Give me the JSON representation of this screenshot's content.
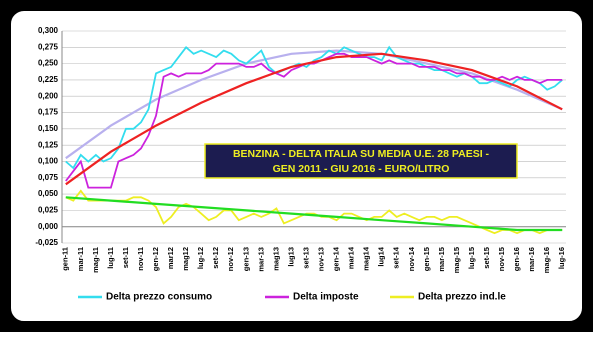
{
  "chart_data": {
    "type": "line",
    "title": [
      "BENZINA - DELTA ITALIA SU MEDIA U.E. 28 PAESI -",
      "GEN 2011 - GIU 2016 - EURO/LITRO"
    ],
    "categories": [
      "gen-11",
      null,
      "mar-11",
      null,
      "mag-11",
      null,
      "lug-11",
      null,
      "set-11",
      null,
      "nov-11",
      null,
      "gen-12",
      null,
      "mar12",
      null,
      "mag12",
      null,
      "lug-12",
      null,
      "set-12",
      null,
      "nov-12",
      null,
      "gen-13",
      null,
      "mar-13",
      null,
      "mag13",
      null,
      "lug13",
      null,
      "set-13",
      null,
      "nov-13",
      null,
      "gen-14",
      null,
      "mar14",
      null,
      "mag14",
      null,
      "lug14",
      null,
      "set-14",
      null,
      "nov-14",
      null,
      "gen-15",
      null,
      "mar-15",
      null,
      "mag-15",
      null,
      "lug-15",
      null,
      "set-15",
      null,
      "nov-15",
      null,
      "gen-16",
      null,
      "mar-16",
      null,
      "mag-16",
      null,
      "lug-16"
    ],
    "series": [
      {
        "name": "Delta prezzo consumo",
        "color": "#33ddee",
        "values": [
          0.1,
          0.09,
          0.11,
          0.1,
          0.11,
          0.1,
          0.105,
          0.12,
          0.15,
          0.15,
          0.16,
          0.18,
          0.235,
          0.24,
          0.245,
          0.26,
          0.275,
          0.265,
          0.27,
          0.265,
          0.26,
          0.27,
          0.265,
          0.255,
          0.25,
          0.26,
          0.27,
          0.245,
          0.235,
          0.24,
          0.245,
          0.25,
          0.245,
          0.255,
          0.26,
          0.27,
          0.265,
          0.275,
          0.27,
          0.265,
          0.26,
          0.26,
          0.255,
          0.275,
          0.26,
          0.255,
          0.25,
          0.25,
          0.245,
          0.24,
          0.24,
          0.235,
          0.23,
          0.235,
          0.23,
          0.22,
          0.22,
          0.225,
          0.22,
          0.215,
          0.225,
          0.23,
          0.225,
          0.22,
          0.21,
          0.215,
          0.225
        ]
      },
      {
        "name": "Delta imposte",
        "color": "#cc22dd",
        "values": [
          0.07,
          0.085,
          0.1,
          0.06,
          0.06,
          0.06,
          0.06,
          0.1,
          0.105,
          0.11,
          0.12,
          0.14,
          0.17,
          0.23,
          0.235,
          0.23,
          0.235,
          0.235,
          0.235,
          0.24,
          0.25,
          0.25,
          0.25,
          0.25,
          0.245,
          0.245,
          0.25,
          0.24,
          0.235,
          0.23,
          0.24,
          0.245,
          0.25,
          0.25,
          0.255,
          0.26,
          0.265,
          0.265,
          0.26,
          0.26,
          0.26,
          0.255,
          0.25,
          0.255,
          0.25,
          0.25,
          0.25,
          0.245,
          0.245,
          0.245,
          0.24,
          0.24,
          0.235,
          0.235,
          0.23,
          0.23,
          0.225,
          0.225,
          0.23,
          0.225,
          0.23,
          0.225,
          0.225,
          0.22,
          0.225,
          0.225,
          0.225
        ]
      },
      {
        "name": "Delta prezzo ind.le",
        "color": "#eeee22",
        "values": [
          0.045,
          0.04,
          0.055,
          0.04,
          0.04,
          0.04,
          0.04,
          0.04,
          0.04,
          0.045,
          0.045,
          0.04,
          0.03,
          0.005,
          0.015,
          0.03,
          0.035,
          0.03,
          0.02,
          0.01,
          0.015,
          0.025,
          0.025,
          0.01,
          0.015,
          0.02,
          0.015,
          0.02,
          0.028,
          0.005,
          0.01,
          0.015,
          0.02,
          0.02,
          0.015,
          0.015,
          0.01,
          0.02,
          0.02,
          0.015,
          0.01,
          0.015,
          0.015,
          0.025,
          0.015,
          0.02,
          0.015,
          0.01,
          0.015,
          0.015,
          0.01,
          0.015,
          0.015,
          0.01,
          0.005,
          0.0,
          -0.005,
          -0.01,
          -0.005,
          -0.005,
          -0.01,
          -0.005,
          -0.005,
          -0.01,
          -0.005,
          -0.005,
          -0.005
        ]
      }
    ],
    "trendlines": [
      {
        "color": "#b8b0ee",
        "x": [
          0,
          6,
          12,
          18,
          24,
          30,
          36,
          42,
          48,
          54,
          60,
          66
        ],
        "values": [
          0.105,
          0.155,
          0.195,
          0.225,
          0.25,
          0.265,
          0.27,
          0.265,
          0.25,
          0.235,
          0.21,
          0.18
        ]
      },
      {
        "color": "#ee2222",
        "x": [
          0,
          6,
          12,
          18,
          24,
          30,
          36,
          42,
          48,
          54,
          60,
          66
        ],
        "values": [
          0.065,
          0.115,
          0.155,
          0.19,
          0.22,
          0.245,
          0.26,
          0.265,
          0.255,
          0.24,
          0.215,
          0.18
        ]
      },
      {
        "color": "#22dd22",
        "x": [
          0,
          6,
          12,
          18,
          24,
          30,
          36,
          42,
          48,
          54,
          60,
          66
        ],
        "values": [
          0.045,
          0.04,
          0.035,
          0.03,
          0.025,
          0.02,
          0.015,
          0.01,
          0.005,
          0.0,
          -0.005,
          -0.005
        ]
      }
    ],
    "ylim": [
      -0.025,
      0.3
    ],
    "yticks": [
      {
        "value": 0.3,
        "label": "0,300"
      },
      {
        "value": 0.275,
        "label": "0,275"
      },
      {
        "value": 0.25,
        "label": "0,250"
      },
      {
        "value": 0.225,
        "label": "0,225"
      },
      {
        "value": 0.2,
        "label": "0,200"
      },
      {
        "value": 0.175,
        "label": "0,175"
      },
      {
        "value": 0.15,
        "label": "0,150"
      },
      {
        "value": 0.125,
        "label": "0,125"
      },
      {
        "value": 0.1,
        "label": "0,100"
      },
      {
        "value": 0.075,
        "label": "0,075"
      },
      {
        "value": 0.05,
        "label": "0,050"
      },
      {
        "value": 0.025,
        "label": "0,025"
      },
      {
        "value": 0,
        "label": "0,000"
      },
      {
        "value": -0.025,
        "label": "-0,025"
      }
    ],
    "grid": true
  }
}
